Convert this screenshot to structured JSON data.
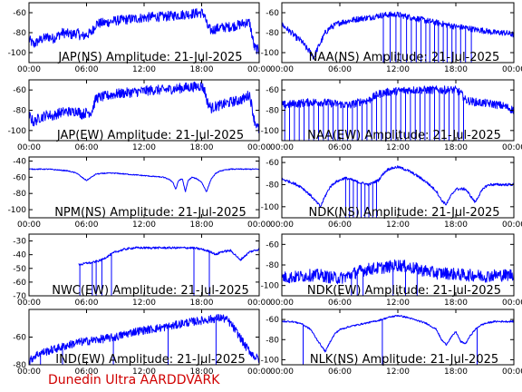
{
  "footer": {
    "label": "Dunedin Ultra AARDDVARK",
    "color": "#d00000"
  },
  "trace_color": "#0000ff",
  "chart_data": [
    {
      "type": "line",
      "title": "JAP(NS) Amplitude: 21-Jul-2025",
      "x_ticks": [
        "00:00",
        "06:00",
        "12:00",
        "18:00",
        "00:00"
      ],
      "xlim": [
        0,
        24
      ],
      "ylim": [
        -110,
        -50
      ],
      "y_ticks": [
        -100,
        -80,
        -60
      ],
      "series": [
        {
          "x": [
            0,
            0.5,
            1,
            1.5,
            2,
            2.5,
            3,
            3.5,
            4,
            4.5,
            5,
            5.5,
            6,
            6.5,
            7,
            8,
            9,
            10,
            11,
            12,
            13,
            14,
            15,
            16,
            17,
            18,
            18.3,
            18.6,
            19,
            19.5,
            20,
            21,
            22,
            22.5,
            23,
            23.5,
            24
          ],
          "y": [
            -87,
            -92,
            -88,
            -86,
            -84,
            -86,
            -83,
            -80,
            -81,
            -82,
            -80,
            -84,
            -82,
            -80,
            -71,
            -70,
            -68,
            -67,
            -66,
            -65,
            -64,
            -64,
            -63,
            -62,
            -61,
            -60,
            -62,
            -74,
            -78,
            -76,
            -75,
            -74,
            -72,
            -70,
            -70,
            -95,
            -98
          ],
          "noise": 5
        }
      ],
      "spikes": []
    },
    {
      "type": "line",
      "title": "NAA(NS) Amplitude: 21-Jul-2025",
      "x_ticks": [
        "00:00",
        "06:00",
        "12:00",
        "18:00",
        "00:00"
      ],
      "xlim": [
        0,
        24
      ],
      "ylim": [
        -110,
        -50
      ],
      "y_ticks": [
        -100,
        -80,
        -60
      ],
      "series": [
        {
          "x": [
            0,
            0.5,
            1,
            1.5,
            2,
            2.5,
            3,
            3.3,
            3.6,
            4,
            4.5,
            5,
            6,
            7,
            8,
            9,
            10,
            11,
            12,
            13,
            14,
            15,
            16,
            17,
            18,
            19,
            20,
            21,
            22,
            23,
            24
          ],
          "y": [
            -72,
            -76,
            -80,
            -85,
            -88,
            -95,
            -100,
            -105,
            -98,
            -90,
            -80,
            -75,
            -70,
            -68,
            -66,
            -65,
            -63,
            -62,
            -62,
            -64,
            -66,
            -68,
            -70,
            -72,
            -74,
            -75,
            -77,
            -78,
            -80,
            -80,
            -82
          ],
          "noise": 3
        }
      ],
      "spikes": [
        10.5,
        11.2,
        11.8,
        12.3,
        12.9,
        13.4,
        13.9,
        14.4,
        14.9,
        15.3,
        15.8,
        16.2,
        16.7,
        17.1,
        17.6,
        18.0,
        18.5,
        19.0,
        19.6
      ]
    },
    {
      "type": "line",
      "title": "JAP(EW) Amplitude: 21-Jul-2025",
      "x_ticks": [
        "00:00",
        "06:00",
        "12:00",
        "18:00",
        "00:00"
      ],
      "xlim": [
        0,
        24
      ],
      "ylim": [
        -110,
        -50
      ],
      "y_ticks": [
        -100,
        -80,
        -60
      ],
      "series": [
        {
          "x": [
            0,
            0.5,
            1,
            1.5,
            2,
            2.5,
            3,
            3.5,
            4,
            4.5,
            5,
            5.5,
            6,
            6.5,
            7,
            8,
            9,
            10,
            11,
            12,
            13,
            14,
            15,
            16,
            17,
            18,
            18.3,
            18.6,
            19,
            19.5,
            20,
            21,
            22,
            22.5,
            23,
            23.5,
            24
          ],
          "y": [
            -85,
            -92,
            -88,
            -86,
            -84,
            -86,
            -83,
            -82,
            -81,
            -82,
            -80,
            -84,
            -82,
            -82,
            -68,
            -66,
            -64,
            -63,
            -62,
            -61,
            -60,
            -60,
            -59,
            -58,
            -57,
            -56,
            -60,
            -72,
            -78,
            -76,
            -75,
            -72,
            -70,
            -68,
            -64,
            -90,
            -100
          ],
          "noise": 5
        }
      ],
      "spikes": []
    },
    {
      "type": "line",
      "title": "NAA(EW) Amplitude: 21-Jul-2025",
      "x_ticks": [
        "00:00",
        "06:00",
        "12:00",
        "18:00",
        "00:00"
      ],
      "xlim": [
        0,
        24
      ],
      "ylim": [
        -110,
        -50
      ],
      "y_ticks": [
        -100,
        -80,
        -60
      ],
      "series": [
        {
          "x": [
            0,
            1,
            2,
            3,
            4,
            5,
            6,
            7,
            8,
            9,
            9.5,
            10,
            11,
            12,
            13,
            14,
            15,
            16,
            17,
            18,
            18.5,
            19,
            20,
            21,
            22,
            23,
            24
          ],
          "y": [
            -75,
            -74,
            -73,
            -72,
            -72,
            -73,
            -74,
            -75,
            -72,
            -70,
            -67,
            -64,
            -62,
            -61,
            -60,
            -60,
            -60,
            -60,
            -60,
            -60,
            -63,
            -70,
            -72,
            -73,
            -74,
            -76,
            -80
          ],
          "noise": 4
        }
      ],
      "spikes": [
        0.3,
        0.8,
        1.3,
        1.8,
        2.3,
        2.8,
        3.3,
        3.8,
        4.3,
        4.8,
        5.3,
        5.8,
        6.3,
        6.8,
        7.3,
        7.8,
        8.3,
        8.8,
        9.3,
        9.8,
        10.3,
        10.8,
        11.3,
        11.8,
        12.3,
        12.8,
        13.3,
        13.8,
        14.3,
        14.8,
        15.3,
        15.8,
        16.3,
        16.8,
        17.3,
        17.8,
        18.3,
        18.8
      ]
    },
    {
      "type": "line",
      "title": "NPM(NS) Amplitude: 21-Jul-2025",
      "x_ticks": [
        "00:00",
        "06:00",
        "12:00",
        "18:00",
        "00:00"
      ],
      "xlim": [
        0,
        24
      ],
      "ylim": [
        -110,
        -35
      ],
      "y_ticks": [
        -100,
        -80,
        -60,
        -40
      ],
      "series": [
        {
          "x": [
            0,
            1,
            2,
            3,
            4,
            5,
            5.5,
            6,
            6.5,
            7,
            8,
            9,
            10,
            11,
            12,
            13,
            14,
            14.5,
            15,
            15.3,
            15.6,
            16,
            16.3,
            16.6,
            17,
            17.5,
            18,
            18.5,
            19,
            19.5,
            20,
            21,
            22,
            23,
            24
          ],
          "y": [
            -50,
            -50,
            -50,
            -51,
            -52,
            -55,
            -60,
            -64,
            -60,
            -56,
            -55,
            -55,
            -56,
            -57,
            -58,
            -59,
            -60,
            -62,
            -66,
            -75,
            -64,
            -62,
            -78,
            -64,
            -60,
            -62,
            -66,
            -78,
            -62,
            -55,
            -52,
            -50,
            -50,
            -50,
            -50
          ],
          "noise": 0.6
        }
      ],
      "spikes": []
    },
    {
      "type": "line",
      "title": "NDK(NS) Amplitude: 21-Jul-2025",
      "x_ticks": [
        "00:00",
        "06:00",
        "12:00",
        "18:00",
        "00:00"
      ],
      "xlim": [
        0,
        24
      ],
      "ylim": [
        -110,
        -55
      ],
      "y_ticks": [
        -100,
        -80,
        -60
      ],
      "series": [
        {
          "x": [
            0,
            1,
            2,
            3,
            3.5,
            4,
            4.5,
            5,
            5.5,
            6,
            6.5,
            7,
            8,
            9,
            10,
            10.5,
            11,
            12,
            13,
            14,
            15,
            16,
            16.5,
            17,
            17.5,
            18,
            19,
            19.5,
            20,
            20.5,
            21,
            21.5,
            22,
            23,
            24
          ],
          "y": [
            -75,
            -78,
            -82,
            -90,
            -95,
            -100,
            -90,
            -82,
            -78,
            -76,
            -74,
            -75,
            -78,
            -80,
            -76,
            -70,
            -66,
            -64,
            -67,
            -72,
            -78,
            -86,
            -94,
            -98,
            -90,
            -84,
            -84,
            -90,
            -96,
            -88,
            -82,
            -80,
            -80,
            -80,
            -80
          ],
          "noise": 1.2
        }
      ],
      "spikes": [
        6.6,
        7.0,
        7.4,
        7.8,
        8.2,
        8.6,
        9.0,
        9.4,
        9.8
      ]
    },
    {
      "type": "line",
      "title": "NWC(EW) Amplitude: 21-Jul-2025",
      "x_ticks": [
        "00:00",
        "06:00",
        "12:00",
        "18:00",
        "00:00"
      ],
      "xlim": [
        0,
        24
      ],
      "ylim": [
        -70,
        -25
      ],
      "y_ticks": [
        -70,
        -60,
        -50,
        -40,
        -30
      ],
      "series": [
        {
          "x": [
            5.2,
            5.6,
            6,
            6.5,
            7,
            7.5,
            8,
            9,
            10,
            11,
            12,
            13,
            14,
            15,
            16,
            17,
            18,
            19,
            19.5,
            20,
            21,
            21.5,
            22,
            23,
            24
          ],
          "y": [
            -47,
            -47,
            -46,
            -46,
            -45,
            -44,
            -42,
            -38,
            -36,
            -35,
            -35,
            -35,
            -35,
            -35,
            -35,
            -35,
            -36,
            -38,
            -40,
            -38,
            -37,
            -40,
            -44,
            -38,
            -36
          ],
          "noise": 0.8
        }
      ],
      "spikes": [
        5.3,
        6.6,
        7.0,
        7.6,
        8.6,
        17.2,
        18.8
      ]
    },
    {
      "type": "line",
      "title": "NDK(EW) Amplitude: 21-Jul-2025",
      "x_ticks": [
        "00:00",
        "06:00",
        "12:00",
        "18:00",
        "00:00"
      ],
      "xlim": [
        0,
        24
      ],
      "ylim": [
        -110,
        -50
      ],
      "y_ticks": [
        -100,
        -80,
        -60
      ],
      "series": [
        {
          "x": [
            0,
            1,
            2,
            3,
            4,
            5,
            6,
            7,
            8,
            9,
            10,
            11,
            12,
            13,
            14,
            15,
            16,
            17,
            18,
            19,
            20,
            21,
            22,
            23,
            24
          ],
          "y": [
            -92,
            -92,
            -91,
            -90,
            -90,
            -92,
            -93,
            -90,
            -86,
            -84,
            -83,
            -82,
            -80,
            -82,
            -84,
            -86,
            -88,
            -88,
            -89,
            -90,
            -90,
            -91,
            -90,
            -90,
            -89
          ],
          "noise": 6
        }
      ],
      "spikes": [
        7.2,
        7.8,
        8.4,
        11.5,
        12.8,
        14.0
      ]
    },
    {
      "type": "line",
      "title": "IND(EW) Amplitude: 21-Jul-2025",
      "x_ticks": [
        "00:00",
        "06:00",
        "12:00",
        "18:00",
        "00:00"
      ],
      "xlim": [
        0,
        24
      ],
      "ylim": [
        -80,
        -40
      ],
      "y_ticks": [
        -80,
        -60
      ],
      "series": [
        {
          "x": [
            0,
            0.5,
            1,
            2,
            3,
            4,
            5,
            6,
            7,
            8,
            9,
            10,
            11,
            12,
            13,
            14,
            15,
            16,
            17,
            18,
            19,
            20,
            20.5,
            21,
            21.5,
            22,
            22.5,
            23,
            23.5,
            24
          ],
          "y": [
            -78,
            -74,
            -72,
            -70,
            -68,
            -66,
            -64,
            -63,
            -62,
            -61,
            -60,
            -58,
            -56,
            -55,
            -54,
            -53,
            -52,
            -50,
            -49,
            -48,
            -47,
            -46,
            -47,
            -50,
            -55,
            -60,
            -66,
            -70,
            -74,
            -76
          ],
          "noise": 3
        }
      ],
      "spikes": [
        1.2,
        3.5,
        8.8,
        14.5,
        19.5
      ]
    },
    {
      "type": "line",
      "title": "NLK(NS) Amplitude: 21-Jul-2025",
      "x_ticks": [
        "00:00",
        "06:00",
        "12:00",
        "18:00",
        "00:00"
      ],
      "xlim": [
        0,
        24
      ],
      "ylim": [
        -105,
        -50
      ],
      "y_ticks": [
        -100,
        -80,
        -60
      ],
      "series": [
        {
          "x": [
            0,
            1,
            2,
            3,
            3.5,
            4,
            4.5,
            5,
            5.5,
            6,
            7,
            8,
            9,
            10,
            11,
            12,
            13,
            14,
            15,
            16,
            16.5,
            17,
            17.5,
            18,
            18.5,
            19,
            19.5,
            20,
            20.5,
            21,
            22,
            23,
            24
          ],
          "y": [
            -62,
            -62,
            -64,
            -70,
            -78,
            -85,
            -92,
            -82,
            -74,
            -70,
            -67,
            -65,
            -63,
            -61,
            -58,
            -56,
            -58,
            -61,
            -64,
            -70,
            -80,
            -85,
            -78,
            -72,
            -82,
            -84,
            -76,
            -70,
            -66,
            -64,
            -62,
            -62,
            -62
          ],
          "noise": 0.8
        }
      ],
      "spikes": [
        2.2,
        10.4,
        20.2
      ]
    }
  ]
}
